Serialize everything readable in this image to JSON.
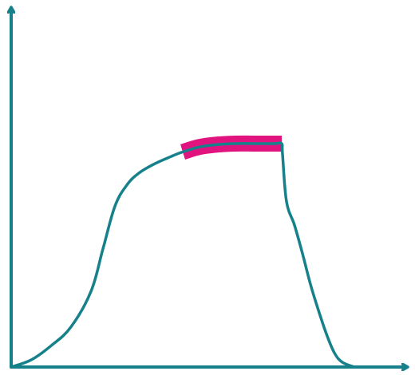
{
  "chart_data": {
    "type": "line",
    "title": "",
    "xlabel": "",
    "ylabel": "",
    "xlim": [
      0,
      100
    ],
    "ylim": [
      0,
      100
    ],
    "grid": false,
    "axis_color": "#17818b",
    "series": [
      {
        "color": "#17818b",
        "x": [
          0,
          5,
          10,
          15,
          20,
          23,
          26,
          29,
          32,
          36,
          40,
          43,
          47,
          51,
          56,
          61,
          66,
          67.8,
          68,
          69,
          71,
          73,
          75,
          77,
          79,
          81,
          83,
          86
        ],
        "y": [
          0,
          3,
          9,
          17,
          32,
          50,
          68,
          77,
          82,
          86,
          89,
          91,
          93,
          94,
          94.5,
          94.5,
          94.5,
          94.5,
          90,
          70,
          60,
          48,
          35,
          24,
          14,
          6,
          2,
          0
        ]
      }
    ],
    "highlight": {
      "color": "#e0137f",
      "x_start": 41,
      "x_end": 67.8
    }
  }
}
